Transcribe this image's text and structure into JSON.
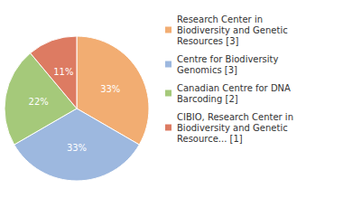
{
  "chart_data": {
    "type": "pie",
    "categories": [
      "Research Center in Biodiversity and Genetic Resources [3]",
      "Centre for Biodiversity Genomics [3]",
      "Canadian Centre for DNA Barcoding [2]",
      "CIBIO, Research Center in Biodiversity and Genetic Resource... [1]"
    ],
    "values": [
      33,
      33,
      22,
      11
    ],
    "value_labels": [
      "33%",
      "33%",
      "22%",
      "11%"
    ],
    "colors": [
      "#f2ad72",
      "#9db8df",
      "#a5c97a",
      "#dd7b62"
    ],
    "data_labels": true,
    "legend": "right"
  }
}
